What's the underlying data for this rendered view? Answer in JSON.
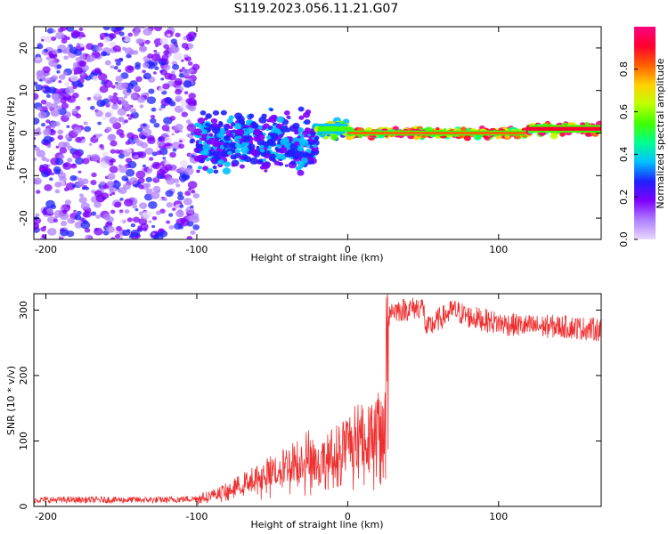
{
  "title": "S119.2023.056.11.21.G07",
  "chart_data": [
    {
      "type": "heatmap",
      "xlabel": "Height of straight line (km)",
      "ylabel": "Frequency (Hz)",
      "xlim": [
        -208,
        168
      ],
      "ylim": [
        -25,
        25
      ],
      "xticks": [
        -200,
        -100,
        0,
        100
      ],
      "yticks": [
        -20,
        -10,
        0,
        10,
        20
      ],
      "colorbar": {
        "label": "Normalized spectral amplitude",
        "range": [
          0.0,
          1.0
        ],
        "ticks": [
          "0.0",
          "0.2",
          "0.4",
          "0.6",
          "0.8"
        ],
        "colormap": [
          "#e8d8ff",
          "#b080ff",
          "#7f00ff",
          "#2020ff",
          "#00c0ff",
          "#00ff90",
          "#40ff00",
          "#c0ff00",
          "#ffd000",
          "#ff6000",
          "#ff0030",
          "#ff0080"
        ]
      },
      "regions": [
        {
          "x": [
            -208,
            -100
          ],
          "f_center": 0,
          "f_halfwidth": 25,
          "amplitude": 0.1,
          "description": "scattered noise"
        },
        {
          "x": [
            -100,
            -20
          ],
          "f_center": -2,
          "f_halfwidth": 7,
          "amplitude": 0.3
        },
        {
          "x": [
            -20,
            0
          ],
          "f_center": 1,
          "f_halfwidth": 2,
          "amplitude": 0.55
        },
        {
          "x": [
            0,
            120
          ],
          "f_center": 0,
          "f_halfwidth": 1,
          "amplitude": 0.85
        },
        {
          "x": [
            120,
            168
          ],
          "f_center": 1,
          "f_halfwidth": 1.5,
          "amplitude": 0.9
        }
      ]
    },
    {
      "type": "line",
      "xlabel": "Height of straight line (km)",
      "ylabel": "SNR (10 * v/v)",
      "xlim": [
        -208,
        168
      ],
      "ylim": [
        0,
        325
      ],
      "xticks": [
        -200,
        -100,
        0,
        100
      ],
      "yticks": [
        0,
        100,
        200,
        300
      ],
      "color": "#ee3030",
      "series": [
        {
          "x": [
            -208,
            -180,
            -150,
            -120,
            -100,
            -90,
            -80,
            -70,
            -60,
            -50,
            -40,
            -30,
            -25,
            -20,
            -10,
            0,
            10,
            20,
            25,
            26,
            27,
            28,
            35,
            50,
            52,
            60,
            70,
            80,
            100,
            120,
            140,
            168
          ],
          "y": [
            10,
            10,
            10,
            10,
            12,
            18,
            25,
            35,
            45,
            55,
            65,
            75,
            85,
            60,
            85,
            100,
            115,
            120,
            125,
            275,
            285,
            300,
            300,
            305,
            270,
            285,
            300,
            290,
            280,
            275,
            275,
            270
          ]
        }
      ]
    }
  ]
}
